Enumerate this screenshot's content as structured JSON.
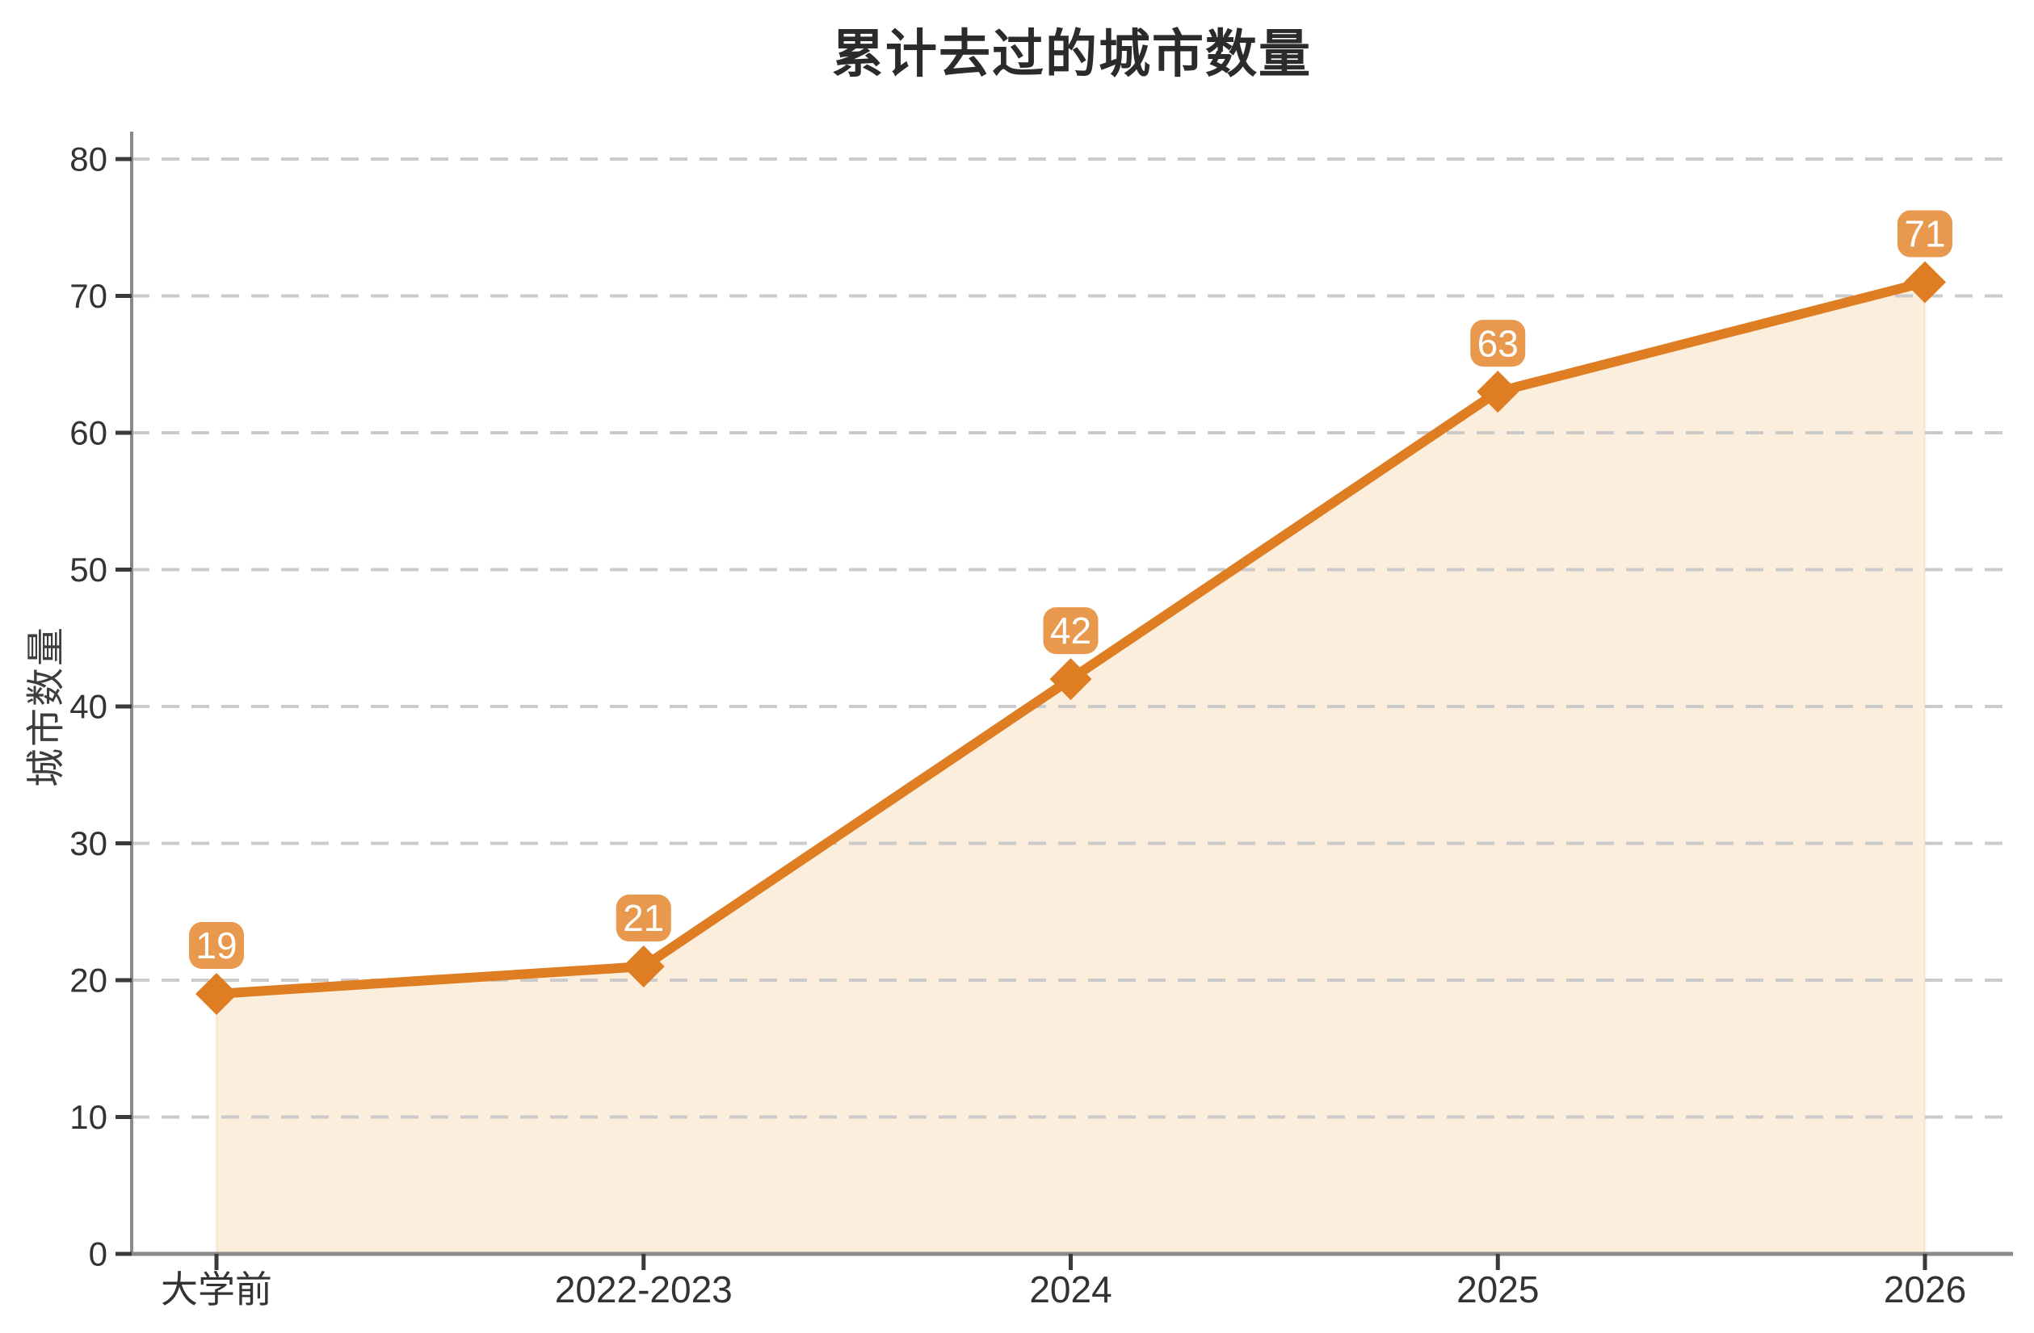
{
  "page": {
    "background": "#ffffff"
  },
  "chart_data": {
    "type": "area",
    "title": "累计去过的城市数量",
    "xlabel": "",
    "ylabel": "城市数量",
    "categories": [
      "大学前",
      "2022-2023",
      "2024",
      "2025",
      "2026"
    ],
    "values": [
      19,
      21,
      42,
      63,
      71
    ],
    "point_labels": [
      "19",
      "21",
      "42",
      "63",
      "71"
    ],
    "ylim": [
      0,
      80
    ],
    "yticks": [
      0,
      10,
      20,
      30,
      40,
      50,
      60,
      70,
      80
    ],
    "grid": {
      "horizontal": true,
      "style": "dashed"
    },
    "legend": "none",
    "marker": "diamond",
    "colors": {
      "line": "#df7d22",
      "marker": "#df7d22",
      "area": "#fbeedd",
      "area_edge": "rgba(223,125,34,0.10)",
      "badge": "#e9994e",
      "badge_text": "#ffffff",
      "grid": "#cbcbcb",
      "axis": "#8a8a8a",
      "tick_mark": "#3a3a3a",
      "tick_text": "#333333",
      "title_text": "#2b2b2b",
      "ylabel_text": "#3d3d3d",
      "background": "#ffffff"
    }
  }
}
